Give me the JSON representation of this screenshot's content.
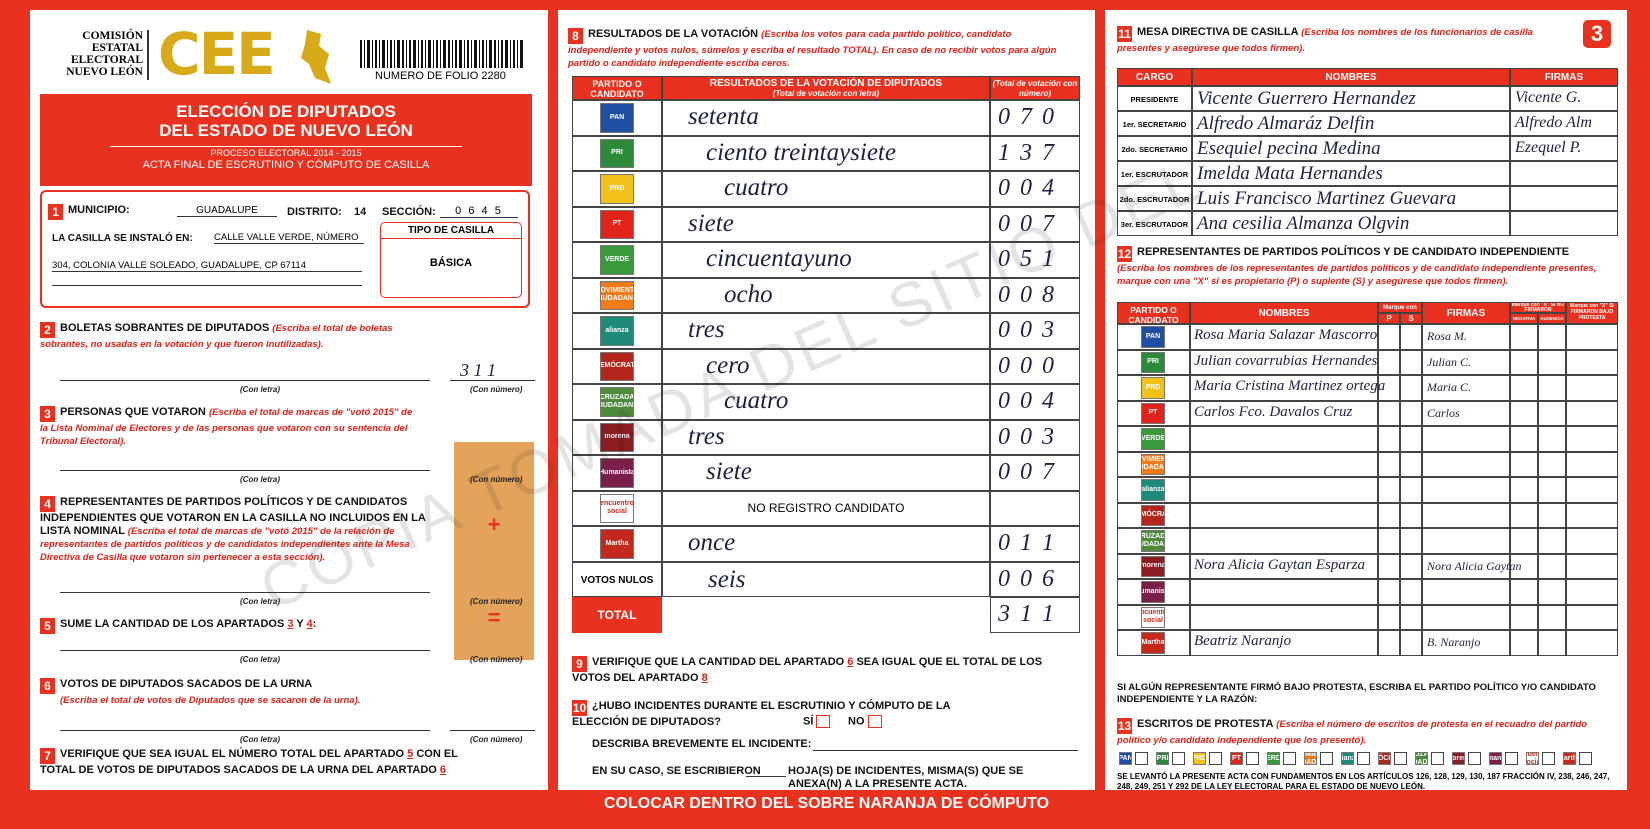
{
  "header": {
    "org_lines": [
      "COMISIÓN",
      "ESTATAL",
      "ELECTORAL",
      "NUEVO LEÓN"
    ],
    "logo": "CEE",
    "folio": "NUMERO DE FOLIO 2280",
    "page_number": "3"
  },
  "title": {
    "line_1": "ELECCIÓN DE DIPUTADOS",
    "line_2": "DEL ESTADO DE NUEVO LEÓN",
    "process": "PROCESO ELECTORAL 2014 - 2015",
    "act": "ACTA FINAL DE ESCRUTINIO Y CÓMPUTO DE CASILLA"
  },
  "section_1": {
    "number": "1",
    "municipio_label": "MUNICIPIO:",
    "municipio": "GUADALUPE",
    "distrito_label": "DISTRITO:",
    "distrito": "14",
    "seccion_label": "SECCIÓN:",
    "seccion": "0 6 4 5",
    "installed_label": "LA CASILLA SE INSTALÓ EN:",
    "address_1": "CALLE VALLE VERDE, NÚMERO",
    "address_2": "304, COLONIA VALLE SOLEADO, GUADALUPE, CP 67114",
    "tipo_label": "TIPO DE CASILLA",
    "tipo": "BÁSICA"
  },
  "labels": {
    "letter": "(Con letra)",
    "number": "(Con número)",
    "plus": "+",
    "equals": "="
  },
  "section_2": {
    "number": "2",
    "title": "BOLETAS SOBRANTES DE DIPUTADOS",
    "note": "(Escriba el total de boletas sobrantes, no usadas en la votación y que fueron inutilizadas).",
    "value": "3 1 1"
  },
  "section_3": {
    "number": "3",
    "title": "PERSONAS QUE VOTARON",
    "note": "(Escriba el total de marcas de \"votó 2015\" de la Lista Nominal de Electores y de las personas que votaron con su sentencia del Tribunal Electoral)."
  },
  "section_4": {
    "number": "4",
    "title": "REPRESENTANTES DE PARTIDOS POLÍTICOS Y DE CANDIDATOS INDEPENDIENTES QUE VOTARON EN LA CASILLA NO INCLUIDOS EN LA LISTA NOMINAL",
    "note": "(Escriba el total de marcas de \"votó 2015\" de la relación de representantes de partidos políticos y de candidatos independientes ante la Mesa Directiva de Casilla que votaron sin pertenecer a esta sección)."
  },
  "section_5": {
    "number": "5",
    "title": "SUME LA CANTIDAD DE LOS APARTADOS",
    "ref_1": "3",
    "joiner": "Y",
    "ref_2": "4",
    "end": ":"
  },
  "section_6": {
    "number": "6",
    "title": "VOTOS DE DIPUTADOS SACADOS DE LA URNA",
    "note": "(Escriba el total de votos de Diputados que se sacaron de la urna)."
  },
  "section_7": {
    "number": "7",
    "title_1": "VERIFIQUE QUE SEA IGUAL EL NÚMERO TOTAL DEL APARTADO",
    "ref_1": "5",
    "title_2": "CON EL TOTAL DE VOTOS DE DIPUTADOS SACADOS DE LA URNA DEL APARTADO",
    "ref_2": "6"
  },
  "parties": [
    {
      "logo": "PAN",
      "color": "#1f4fa3"
    },
    {
      "logo": "PRI",
      "color": "#2c8a3a"
    },
    {
      "logo": "PRD",
      "color": "#f2c21b"
    },
    {
      "logo": "PT",
      "color": "#e0231b"
    },
    {
      "logo": "VERDE",
      "color": "#3a9a3a"
    },
    {
      "logo": "MOVIMIENTO CIUDADANO",
      "color": "#f07b1a"
    },
    {
      "logo": "alianza",
      "color": "#1d8a7a"
    },
    {
      "logo": "DEMÓCRATA",
      "color": "#b2261c"
    },
    {
      "logo": "CRUZADA CIUDADANA",
      "color": "#4e8a3a"
    },
    {
      "logo": "morena",
      "color": "#8a1c22"
    },
    {
      "logo": "Humanista",
      "color": "#7a1f4a"
    },
    {
      "logo": "encuentro social",
      "color": "#ffffff"
    },
    {
      "logo": "Martha",
      "color": "#c42a1c"
    }
  ],
  "section_8": {
    "number": "8",
    "title": "RESULTADOS DE LA VOTACIÓN",
    "note": "(Escriba los votos para cada partido político, candidato independiente y votos nulos, súmelos y escriba el resultado TOTAL). En caso de no recibir votos para algún partido o candidato independiente escriba ceros.",
    "header_party": "PARTIDO O CANDIDATO",
    "header_results": "RESULTADOS DE LA VOTACIÓN DE DIPUTADOS",
    "header_results_note": "(Total de votación con letra)",
    "header_total": "(Total de votación con número)",
    "rows": [
      {
        "letters": "setenta",
        "number": "0 7 0"
      },
      {
        "letters": "ciento treintaysiete",
        "number": "1 3 7"
      },
      {
        "letters": "cuatro",
        "number": "0 0 4"
      },
      {
        "letters": "siete",
        "number": "0 0 7"
      },
      {
        "letters": "cincuentayuno",
        "number": "0 5 1"
      },
      {
        "letters": "ocho",
        "number": "0 0 8"
      },
      {
        "letters": "tres",
        "number": "0 0 3"
      },
      {
        "letters": "cero",
        "number": "0 0 0"
      },
      {
        "letters": "cuatro",
        "number": "0 0 4"
      },
      {
        "letters": "tres",
        "number": "0 0 3"
      },
      {
        "letters": "siete",
        "number": "0 0 7"
      },
      {
        "printed": "NO REGISTRO CANDIDATO"
      },
      {
        "letters": "once",
        "number": "0 1 1"
      }
    ],
    "null_label": "VOTOS NULOS",
    "null_letters": "seis",
    "null_number": "0 0 6",
    "total_label": "TOTAL",
    "total_number": "3 1 1"
  },
  "section_9": {
    "number": "9",
    "text_1": "VERIFIQUE QUE LA CANTIDAD DEL APARTADO",
    "ref_1": "6",
    "text_2": "SEA IGUAL QUE EL TOTAL DE LOS VOTOS DEL APARTADO",
    "ref_2": "8"
  },
  "section_10": {
    "number": "10",
    "question": "¿HUBO INCIDENTES DURANTE EL ESCRUTINIO Y CÓMPUTO DE LA ELECCIÓN DE DIPUTADOS?",
    "yes": "SÍ",
    "no": "NO",
    "describe": "DESCRIBA BREVEMENTE EL INCIDENTE:",
    "case_1": "EN SU CASO, SE ESCRIBIERON",
    "case_2": "HOJA(S) DE INCIDENTES, MISMA(S) QUE SE ANEXA(N) A LA PRESENTE ACTA."
  },
  "section_11": {
    "number": "11",
    "title": "MESA DIRECTIVA DE CASILLA",
    "note": "(Escriba los nombres de los funcionarios de casilla presentes y asegúrese que todos firmen).",
    "header_role": "CARGO",
    "header_names": "NOMBRES",
    "header_signatures": "FIRMAS",
    "rows": [
      {
        "role": "PRESIDENTE",
        "name": "Vicente Guerrero Hernandez",
        "signature": "Vicente G."
      },
      {
        "role": "1er. SECRETARIO",
        "name": "Alfredo Almaráz Delfin",
        "signature": "Alfredo Alm"
      },
      {
        "role": "2do. SECRETARIO",
        "name": "Esequiel pecina Medina",
        "signature": "Ezequel P."
      },
      {
        "role": "1er. ESCRUTADOR",
        "name": "Imelda Mata Hernandes",
        "signature": null
      },
      {
        "role": "2do. ESCRUTADOR",
        "name": "Luis Francisco Martinez Guevara",
        "signature": null
      },
      {
        "role": "3er. ESCRUTADOR",
        "name": "Ana cesilia Almanza Olgvin",
        "signature": null
      }
    ]
  },
  "section_12": {
    "number": "12",
    "title": "REPRESENTANTES DE PARTIDOS POLÍTICOS Y DE CANDIDATO INDEPENDIENTE",
    "note": "(Escriba los nombres de los representantes de partidos políticos y de candidato independiente presentes, marque con una \"X\" si es propietario (P) o suplente (S) y asegúrese que todos firmen).",
    "header_party": "PARTIDO O CANDIDATO",
    "header_names": "NOMBRES",
    "header_mark": "Marque con \"X\"",
    "header_p": "P",
    "header_s": "S",
    "header_signatures": "FIRMAS",
    "header_not_signed": "Marque con \"X\" SI NO FIRMARON",
    "header_refusal": "NEGATIVA",
    "header_absence": "AUSENCIA",
    "header_protest": "Marque con \"X\" SI FIRMARON BAJO PROTESTA",
    "rows": [
      {
        "name": "Rosa Maria Salazar Mascorro",
        "signature": "Rosa M."
      },
      {
        "name": "Julian covarrubias Hernandes",
        "signature": "Julian C."
      },
      {
        "name": "Maria Cristina Martinez ortega",
        "signature": "Maria C."
      },
      {
        "name": "Carlos Fco. Davalos Cruz",
        "signature": "Carlos"
      },
      {
        "name": null,
        "signature": null
      },
      {
        "name": null,
        "signature": null
      },
      {
        "name": null,
        "signature": null
      },
      {
        "name": null,
        "signature": null
      },
      {
        "name": null,
        "signature": null
      },
      {
        "name": "Nora Alicia Gaytan Esparza",
        "signature": "Nora Alicia Gaytan"
      },
      {
        "name": null,
        "signature": null
      },
      {
        "name": null,
        "signature": null
      },
      {
        "name": "Beatriz Naranjo",
        "signature": "B. Naranjo"
      }
    ]
  },
  "protest_question": "SI ALGÚN REPRESENTANTE FIRMÓ BAJO PROTESTA, ESCRIBA EL PARTIDO POLÍTICO Y/O CANDIDATO INDEPENDIENTE Y LA RAZÓN:",
  "section_13": {
    "number": "13",
    "title": "ESCRITOS DE PROTESTA",
    "note": "(Escriba el número de escritos de protesta en el recuadro del partido político y/o candidato independiente que los presentó)."
  },
  "legal": "SE LEVANTÓ LA PRESENTE ACTA CON FUNDAMENTOS EN LOS ARTÍCULOS 126, 128, 129, 130, 187 FRACCIÓN IV, 238, 246, 247, 248, 249, 251 Y 292 DE LA LEY ELECTORAL PARA EL ESTADO DE NUEVO LEÓN.",
  "footer": "COLOCAR DENTRO DEL SOBRE NARANJA DE CÓMPUTO",
  "watermark": "COPIA TOMADA DEL SITIO DEL"
}
